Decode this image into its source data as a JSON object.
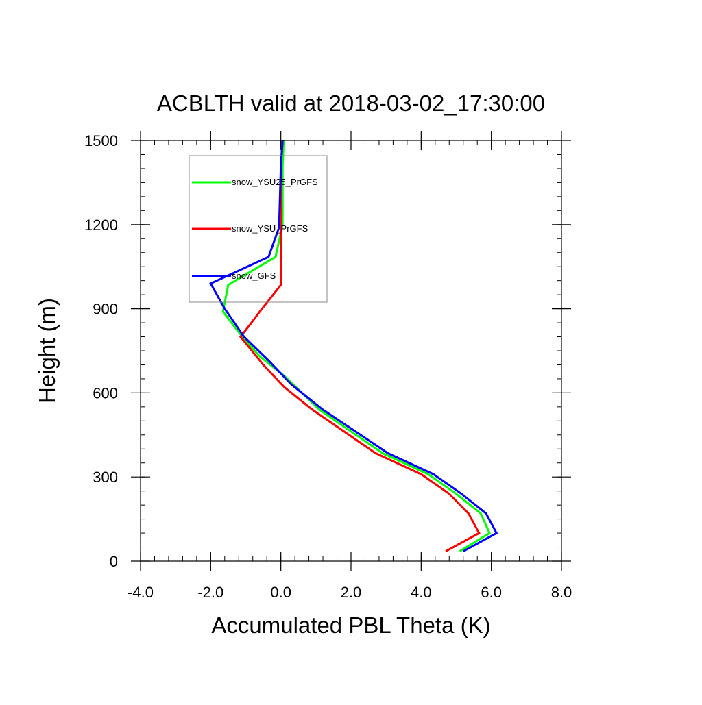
{
  "chart_data": {
    "type": "line",
    "title": "ACBLTH valid at 2018-03-02_17:30:00",
    "xlabel": "Accumulated PBL Theta (K)",
    "ylabel": "Height (m)",
    "xlim": [
      -4,
      8
    ],
    "ylim": [
      0,
      1500
    ],
    "x_ticks": [
      -4,
      -2,
      0,
      2,
      4,
      6,
      8
    ],
    "x_tick_labels": [
      "-4.0",
      "-2.0",
      "0.0",
      "2.0",
      "4.0",
      "6.0",
      "8.0"
    ],
    "y_ticks": [
      0,
      300,
      600,
      900,
      1200,
      1500
    ],
    "y_tick_labels": [
      "0",
      "300",
      "600",
      "900",
      "1200",
      "1500"
    ],
    "x_minor_step": 0.4,
    "y_minor_step": 50,
    "grid": false,
    "legend_position": "top-left",
    "series": [
      {
        "name": "snow_YSU25_PrGFS",
        "color": "#00ff00",
        "points": [
          [
            5.1,
            35
          ],
          [
            5.95,
            100
          ],
          [
            5.7,
            170
          ],
          [
            5.0,
            240
          ],
          [
            4.2,
            310
          ],
          [
            2.9,
            385
          ],
          [
            1.1,
            540
          ],
          [
            0.1,
            660
          ],
          [
            -0.6,
            730
          ],
          [
            -1.1,
            800
          ],
          [
            -1.65,
            890
          ],
          [
            -1.5,
            985
          ],
          [
            -0.15,
            1085
          ],
          [
            0.05,
            1200
          ],
          [
            0.05,
            1410
          ],
          [
            0.08,
            1500
          ]
        ]
      },
      {
        "name": "snow_YSU_PrGFS",
        "color": "#ff0000",
        "points": [
          [
            4.7,
            35
          ],
          [
            5.65,
            100
          ],
          [
            5.35,
            170
          ],
          [
            4.8,
            240
          ],
          [
            4.0,
            310
          ],
          [
            2.7,
            385
          ],
          [
            0.9,
            540
          ],
          [
            0.1,
            620
          ],
          [
            -0.5,
            700
          ],
          [
            -1.15,
            800
          ],
          [
            -0.9,
            840
          ],
          [
            -0.6,
            890
          ],
          [
            0.0,
            985
          ],
          [
            0.0,
            1200
          ],
          [
            0.0,
            1410
          ],
          [
            0.05,
            1500
          ]
        ]
      },
      {
        "name": "snow_GFS",
        "color": "#0000ff",
        "points": [
          [
            5.2,
            35
          ],
          [
            6.15,
            100
          ],
          [
            5.85,
            170
          ],
          [
            5.15,
            240
          ],
          [
            4.35,
            310
          ],
          [
            3.05,
            385
          ],
          [
            1.2,
            540
          ],
          [
            0.3,
            630
          ],
          [
            -0.35,
            715
          ],
          [
            -1.05,
            800
          ],
          [
            -1.6,
            900
          ],
          [
            -2.0,
            990
          ],
          [
            -0.35,
            1085
          ],
          [
            -0.05,
            1190
          ],
          [
            0.0,
            1410
          ],
          [
            0.05,
            1500
          ]
        ]
      }
    ]
  }
}
